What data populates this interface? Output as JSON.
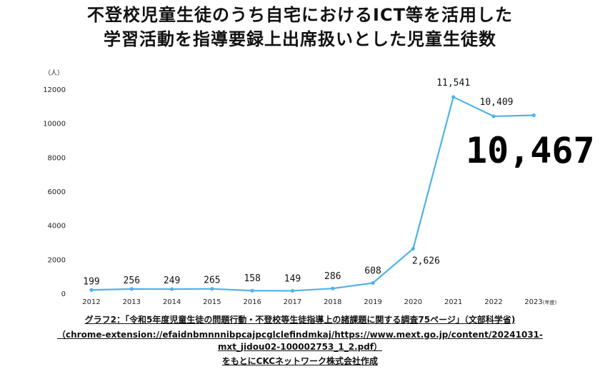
{
  "title_line1": "不登校児童生徒のうち自宅におけるICT等を活用した",
  "title_line2": "学習活動を指導要録上出席扱いとした児童生徒数",
  "chart_data": {
    "type": "line",
    "x": [
      "2012",
      "2013",
      "2014",
      "2015",
      "2016",
      "2017",
      "2018",
      "2019",
      "2020",
      "2021",
      "2022",
      "2023"
    ],
    "series": [
      {
        "values": [
          199,
          256,
          249,
          265,
          158,
          149,
          286,
          608,
          2626,
          11541,
          10409,
          10467
        ],
        "labels": [
          "199",
          "256",
          "249",
          "265",
          "158",
          "149",
          "286",
          "608",
          "2,626",
          "11,541",
          "10,409",
          ""
        ]
      }
    ],
    "yticks": [
      "0",
      "2000",
      "4000",
      "6000",
      "8000",
      "10000",
      "12000"
    ],
    "ylim": [
      0,
      12000
    ],
    "yunit": "（人）",
    "xunit_suffix": "(年度)",
    "callout": "10,467",
    "line_color": "#4fb3e8",
    "grid": false
  },
  "source": {
    "line1": "グラフ2：「令和5年度児童生徒の問題行動・不登校等生徒指導上の諸課題に関する調査75ページ」（文部科学省)",
    "line2": "（chrome-extension://efaidnbmnnnibpcajpcglclefindmkaj/https://www.mext.go.jp/content/20241031-",
    "line3": "mxt_jidou02-100002753_1_2.pdf）",
    "line4": "をもとにCKCネットワーク株式会社作成"
  }
}
